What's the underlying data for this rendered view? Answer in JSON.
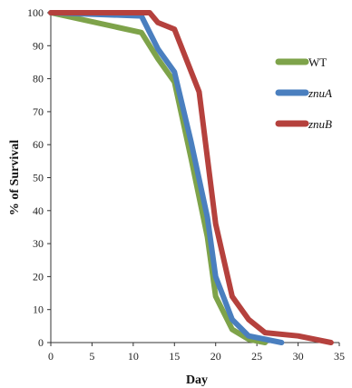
{
  "chart_data": {
    "type": "line",
    "title": "",
    "xlabel": "Day",
    "ylabel": "% of Survival",
    "xlim": [
      0,
      35
    ],
    "ylim": [
      0,
      100
    ],
    "xticks": [
      0,
      5,
      10,
      15,
      20,
      25,
      30,
      35
    ],
    "yticks": [
      0,
      10,
      20,
      30,
      40,
      50,
      60,
      70,
      80,
      90,
      100
    ],
    "grid": false,
    "legend": "right",
    "series": [
      {
        "name": "WT",
        "italic": false,
        "color": "#7ea34a",
        "x": [
          0,
          11,
          13,
          15,
          17,
          19,
          20,
          22,
          24,
          26
        ],
        "y": [
          100,
          94,
          86,
          79,
          56,
          32,
          14,
          4,
          1,
          0
        ]
      },
      {
        "name": "znuA",
        "italic": true,
        "color": "#4a7fbf",
        "x": [
          0,
          11,
          13,
          15,
          17,
          19,
          20,
          22,
          24,
          28
        ],
        "y": [
          100,
          99,
          89,
          82,
          61,
          38,
          20,
          7,
          2,
          0
        ]
      },
      {
        "name": "znuB",
        "italic": true,
        "color": "#b5413d",
        "x": [
          0,
          12,
          13,
          15,
          18,
          20,
          22,
          24,
          26,
          30,
          34
        ],
        "y": [
          100,
          100,
          97,
          95,
          76,
          36,
          14,
          7,
          3,
          2,
          0
        ]
      }
    ]
  }
}
